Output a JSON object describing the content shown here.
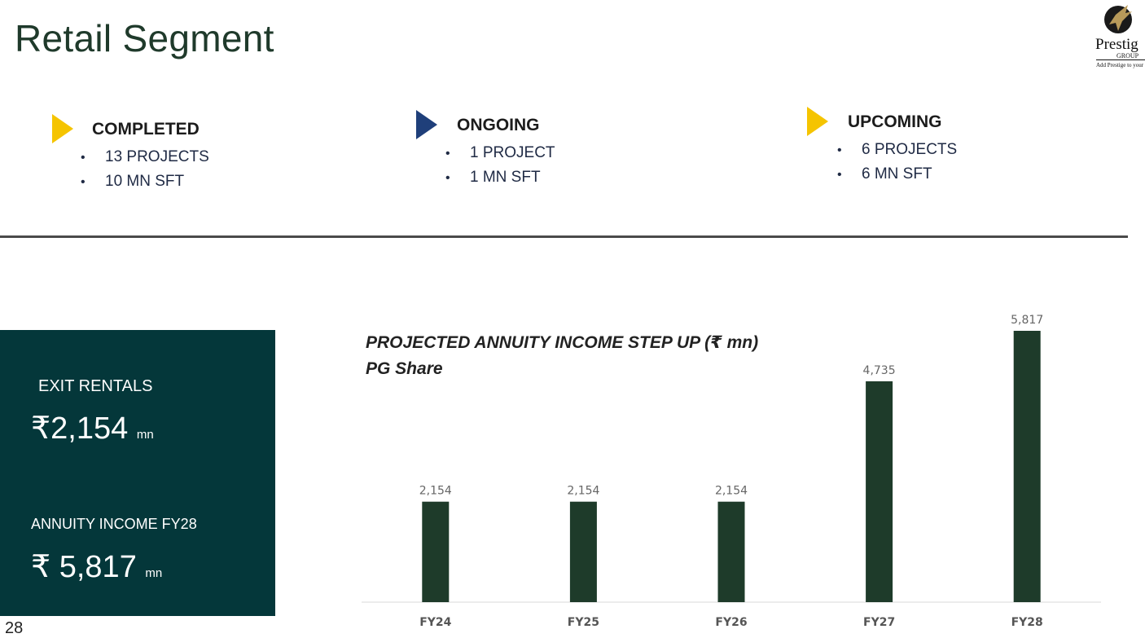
{
  "header": {
    "title": "Retail Segment"
  },
  "logo": {
    "word": "Prestig",
    "group": "GROUP",
    "tagline": "Add Prestige to your"
  },
  "segments": [
    {
      "title": "COMPLETED",
      "items": [
        "13 PROJECTS",
        "10 MN SFT"
      ],
      "marker_color": "#f5c400"
    },
    {
      "title": "ONGOING",
      "items": [
        "1 PROJECT",
        "1 MN SFT"
      ],
      "marker_color": "#1f3f7a"
    },
    {
      "title": "UPCOMING",
      "items": [
        "6 PROJECTS",
        "6 MN SFT"
      ],
      "marker_color": "#f5c400"
    }
  ],
  "panel": {
    "exit_label": "EXIT RENTALS",
    "exit_value": "₹2,154",
    "exit_unit": "mn",
    "annuity_label": "ANNUITY INCOME FY28",
    "annuity_value": "₹ 5,817",
    "annuity_unit": "mn"
  },
  "page_number": "28",
  "colors": {
    "bar": "#1e3b2a",
    "panel": "#04373a",
    "title": "#1f3a2b"
  },
  "chart_data": {
    "type": "bar",
    "title": "PROJECTED  ANNUITY INCOME STEP UP (₹ mn)",
    "subtitle": "PG Share",
    "categories": [
      "FY24",
      "FY25",
      "FY26",
      "FY27",
      "FY28"
    ],
    "values": [
      2154,
      2154,
      2154,
      4735,
      5817
    ],
    "data_labels": [
      "2,154",
      "2,154",
      "2,154",
      "4,735",
      "5,817"
    ],
    "ylim": [
      0,
      5817
    ],
    "grid": false,
    "legend": "none"
  }
}
